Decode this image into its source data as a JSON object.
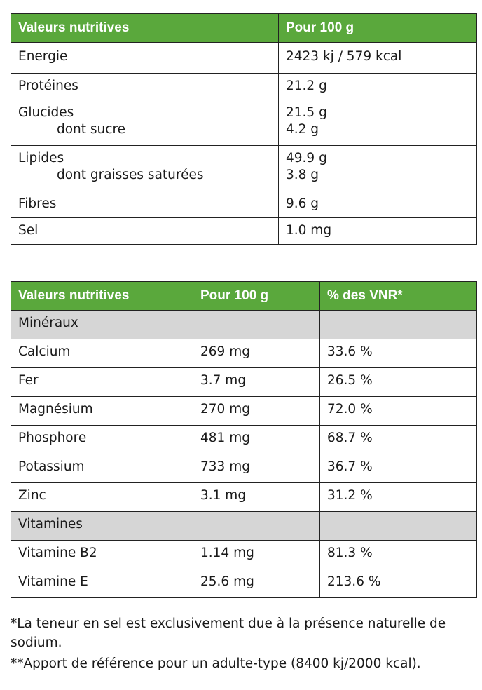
{
  "table1": {
    "headers": [
      "Valeurs nutritives",
      "Pour 100 g"
    ],
    "rows": [
      {
        "name": "Energie",
        "value": "2423 kj / 579 kcal"
      },
      {
        "name": "Protéines",
        "value": "21.2 g"
      },
      {
        "name": "Glucides",
        "value": "21.5 g",
        "sub_name": "dont sucre",
        "sub_value": "4.2 g"
      },
      {
        "name": "Lipides",
        "value": "49.9 g",
        "sub_name": "dont graisses saturées",
        "sub_value": "3.8 g"
      },
      {
        "name": "Fibres",
        "value": "9.6 g"
      },
      {
        "name": "Sel",
        "value": "1.0 mg"
      }
    ]
  },
  "table2": {
    "headers": [
      "Valeurs nutritives",
      "Pour 100 g",
      "% des VNR*"
    ],
    "section_minerals": "Minéraux",
    "minerals": [
      {
        "name": "Calcium",
        "value": "269 mg",
        "vnr": "33.6 %"
      },
      {
        "name": "Fer",
        "value": "3.7 mg",
        "vnr": "26.5 %"
      },
      {
        "name": "Magnésium",
        "value": "270 mg",
        "vnr": "72.0 %"
      },
      {
        "name": "Phosphore",
        "value": "481 mg",
        "vnr": "68.7 %"
      },
      {
        "name": "Potassium",
        "value": "733 mg",
        "vnr": "36.7 %"
      },
      {
        "name": "Zinc",
        "value": "3.1 mg",
        "vnr": "31.2 %"
      }
    ],
    "section_vitamins": "Vitamines",
    "vitamins": [
      {
        "name": "Vitamine B2",
        "value": "1.14 mg",
        "vnr": "81.3 %"
      },
      {
        "name": "Vitamine E",
        "value": "25.6 mg",
        "vnr": "213.6 %"
      }
    ]
  },
  "notes": {
    "salt": "*La teneur en sel est  exclusivement due à la présence naturelle de sodium.",
    "reference": "**Apport de référence pour un adulte-type (8400 kj/2000 kcal)."
  },
  "colors": {
    "header_green": "#5aa83c",
    "section_grey": "#d6d6d6"
  }
}
